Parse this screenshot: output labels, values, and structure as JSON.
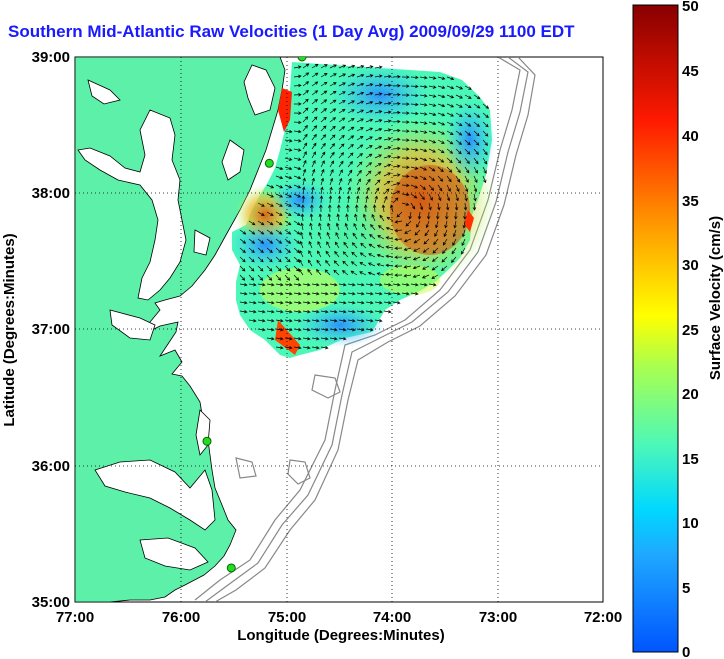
{
  "title": "Southern Mid-Atlantic Raw Velocities (1 Day Avg) 2009/09/29 1100 EDT",
  "map": {
    "xlabel": "Longitude (Degrees:Minutes)",
    "ylabel": "Latitude (Degrees:Minutes)",
    "x_ticks": [
      "77:00",
      "76:00",
      "75:00",
      "74:00",
      "73:00",
      "72:00"
    ],
    "y_ticks": [
      "39:00",
      "38:00",
      "37:00",
      "36:00",
      "35:00"
    ],
    "lon_range": [
      -77,
      -72
    ],
    "lat_range": [
      35,
      39
    ],
    "colors": {
      "land": "#5cf0a8",
      "coast": "#000000",
      "bathy": "#888888",
      "grid": "#000000"
    },
    "stations": [
      {
        "lon": -74.85,
        "lat": 39.0
      },
      {
        "lon": -75.16,
        "lat": 38.22
      },
      {
        "lon": -75.75,
        "lat": 36.18
      },
      {
        "lon": -75.52,
        "lat": 35.25
      }
    ]
  },
  "colorbar": {
    "label": "Surface Velocity (cm/s)",
    "ticks": [
      "50",
      "45",
      "40",
      "35",
      "30",
      "25",
      "20",
      "15",
      "10",
      "5",
      "0"
    ],
    "range": [
      0,
      50
    ],
    "stops": [
      "#0055ff",
      "#00d8ff",
      "#4cf8b8",
      "#c8ff28",
      "#ffff00",
      "#ff8800",
      "#ff0000",
      "#880000"
    ]
  }
}
